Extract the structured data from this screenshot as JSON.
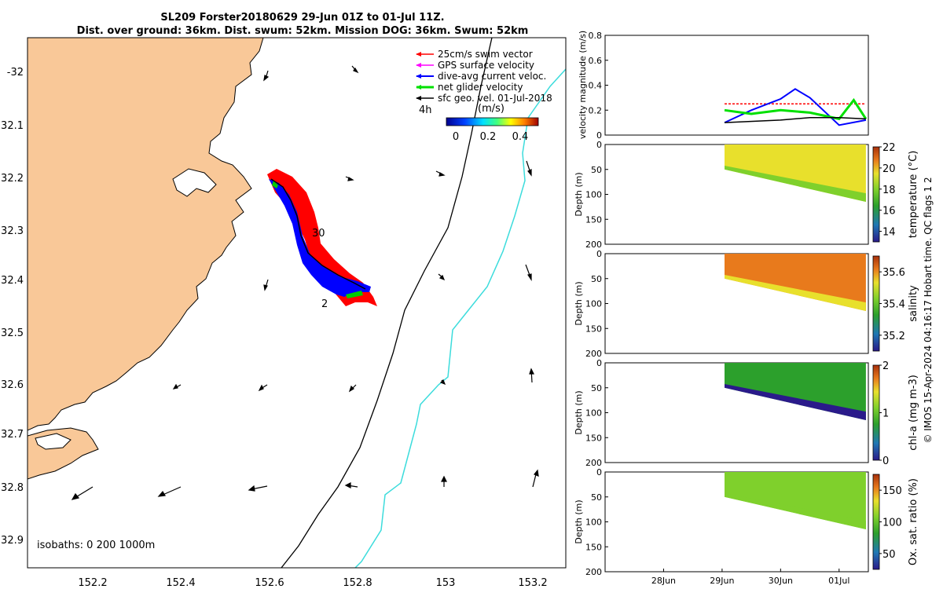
{
  "title": {
    "line1": "SL209 Forster20180629 29-Jun 01Z to 01-Jul 11Z.",
    "line2": "Dist. over ground: 36km. Dist. swum: 52km. Mission DOG: 36km. Swum: 52km"
  },
  "credit": "© IMOS 15-Apr-2024 04:16:17 Hobart time. QC flags 1  2",
  "colors": {
    "land": "#f9c898",
    "swim_vector": "#ff0000",
    "gps_velocity": "#ff00ff",
    "dive_avg_current": "#0000ff",
    "net_glider": "#00e000",
    "sfc_geo": "#000000",
    "isobath_200": "#000000",
    "isobath_1000": "#3cdcdc"
  },
  "map": {
    "legend": [
      {
        "label": "25cm/s swim vector",
        "color": "#ff0000"
      },
      {
        "label": "GPS surface velocity",
        "color": "#ff00ff"
      },
      {
        "label": "dive-avg current veloc.",
        "color": "#0000ff"
      },
      {
        "label": "net glider velocity",
        "color": "#00e000"
      },
      {
        "label": "sfc geo. vel. 01-Jul-2018",
        "color": "#000000"
      }
    ],
    "interval_label": "4h",
    "colorbar_label": "(m/s)",
    "colorbar_ticks": [
      "0",
      "0.2",
      "0.4"
    ],
    "isobaths_label": "isobaths: 0   200  1000m",
    "day_labels": [
      {
        "text": "30"
      },
      {
        "text": "2"
      }
    ],
    "lon_ticks": [
      "152.2",
      "152.4",
      "152.6",
      "152.8",
      "153",
      "153.2"
    ],
    "lat_ticks": [
      "-32",
      "32.1",
      "32.2",
      "32.3",
      "32.4",
      "32.5",
      "32.6",
      "32.7",
      "32.8",
      "32.9"
    ]
  },
  "time_axis": {
    "ticks": [
      "28Jun",
      "29Jun",
      "30Jun",
      "01Jul"
    ]
  },
  "chart_data": [
    {
      "type": "line",
      "ylabel": "velocity magnitude (m/s)",
      "ylim": [
        0,
        0.8
      ],
      "yticks": [
        "0",
        "0.2",
        "0.4",
        "0.6",
        "0.8"
      ],
      "series": [
        {
          "name": "25cm/s swim vector",
          "color": "#ff0000",
          "x": [
            "29-Jun 01Z",
            "01-Jul 11Z"
          ],
          "y": [
            0.25,
            0.25
          ]
        },
        {
          "name": "dive-avg current veloc.",
          "color": "#0000ff",
          "x": [
            "29-Jun 01Z",
            "29-Jun 12Z",
            "30-Jun 00Z",
            "30-Jun 06Z",
            "30-Jun 12Z",
            "01-Jul 00Z",
            "01-Jul 11Z"
          ],
          "y": [
            0.1,
            0.2,
            0.29,
            0.37,
            0.3,
            0.08,
            0.12
          ]
        },
        {
          "name": "net glider velocity",
          "color": "#00e000",
          "x": [
            "29-Jun 01Z",
            "29-Jun 12Z",
            "30-Jun 00Z",
            "30-Jun 12Z",
            "01-Jul 00Z",
            "01-Jul 06Z",
            "01-Jul 11Z"
          ],
          "y": [
            0.2,
            0.17,
            0.2,
            0.18,
            0.13,
            0.28,
            0.13
          ]
        },
        {
          "name": "sfc geo. vel. 01-Jul-2018",
          "color": "#000000",
          "x": [
            "29-Jun 01Z",
            "30-Jun 00Z",
            "30-Jun 12Z",
            "01-Jul 00Z",
            "01-Jul 11Z"
          ],
          "y": [
            0.1,
            0.12,
            0.14,
            0.14,
            0.13
          ]
        }
      ]
    },
    {
      "type": "heatmap",
      "ylabel": "Depth (m)",
      "ylim": [
        0,
        200
      ],
      "yticks": [
        "0",
        "50",
        "100",
        "150",
        "200"
      ],
      "cbar_label": "temperature (°C)",
      "clim": [
        13,
        22
      ],
      "cticks": [
        "14",
        "16",
        "18",
        "20",
        "22"
      ],
      "colormap": [
        "#2a1a8a",
        "#1f78b4",
        "#2ca02c",
        "#7fd02c",
        "#e8e02c",
        "#e87a1c",
        "#a8300c"
      ],
      "profile_depth_m": {
        "start": 50,
        "end": 115
      },
      "values": {
        "surface": 19.5,
        "deep": 18.2
      }
    },
    {
      "type": "heatmap",
      "ylabel": "Depth (m)",
      "ylim": [
        0,
        200
      ],
      "yticks": [
        "0",
        "50",
        "100",
        "150",
        "200"
      ],
      "cbar_label": "salinity",
      "clim": [
        35.1,
        35.7
      ],
      "cticks": [
        "35.2",
        "35.4",
        "35.6"
      ],
      "colormap": [
        "#2a1a8a",
        "#1f78b4",
        "#2ca02c",
        "#7fd02c",
        "#e8e02c",
        "#e87a1c",
        "#a8300c"
      ],
      "profile_depth_m": {
        "start": 50,
        "end": 115
      },
      "values": {
        "surface": 35.62,
        "deep": 35.52
      }
    },
    {
      "type": "heatmap",
      "ylabel": "Depth (m)",
      "ylim": [
        0,
        200
      ],
      "yticks": [
        "0",
        "50",
        "100",
        "150",
        "200"
      ],
      "cbar_label": "chl-a (mg m-3)",
      "clim": [
        0,
        2
      ],
      "cticks": [
        "0",
        "1",
        "2"
      ],
      "colormap": [
        "#2a1a8a",
        "#1f78b4",
        "#2ca02c",
        "#7fd02c",
        "#e8e02c",
        "#e87a1c",
        "#a8300c"
      ],
      "profile_depth_m": {
        "start": 50,
        "end": 115
      },
      "values": {
        "surface": 0.8,
        "deep": 0.1
      }
    },
    {
      "type": "heatmap",
      "ylabel": "Depth (m)",
      "ylim": [
        0,
        200
      ],
      "yticks": [
        "0",
        "50",
        "100",
        "150",
        "200"
      ],
      "cbar_label": "Ox. sat. ratio (%)",
      "clim": [
        25,
        175
      ],
      "cticks": [
        "50",
        "100",
        "150"
      ],
      "colormap": [
        "#2a1a8a",
        "#1f78b4",
        "#2ca02c",
        "#7fd02c",
        "#e8e02c",
        "#e87a1c",
        "#a8300c"
      ],
      "profile_depth_m": {
        "start": 50,
        "end": 115
      },
      "values": {
        "surface": 100,
        "deep": 90
      }
    }
  ]
}
